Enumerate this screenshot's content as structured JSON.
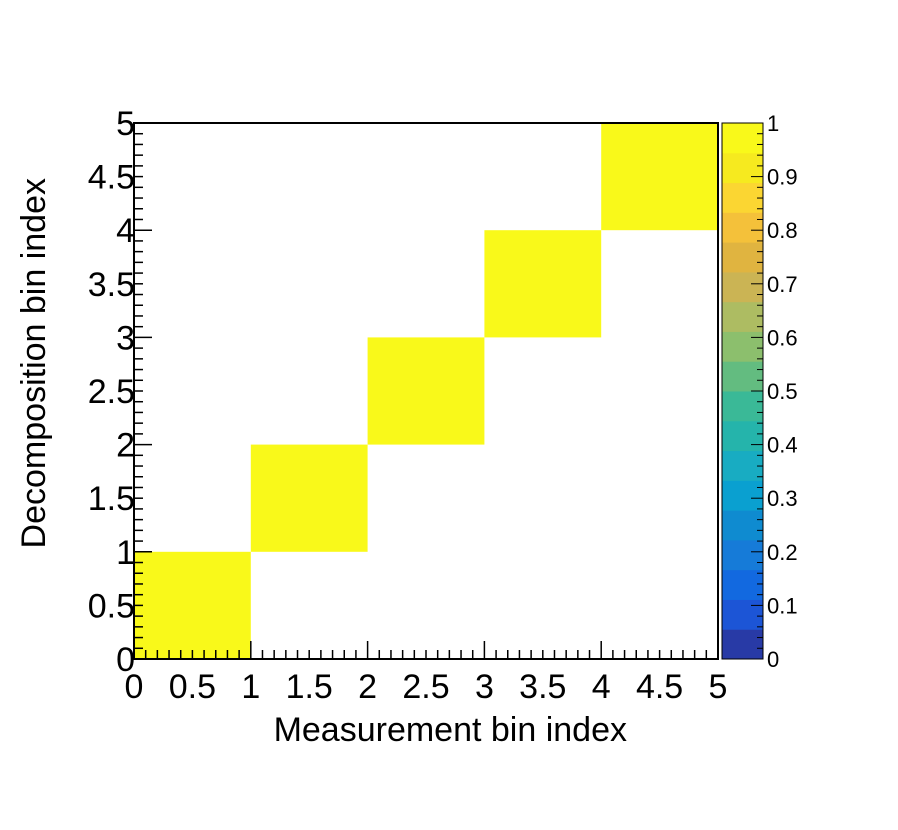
{
  "chart_data": {
    "type": "heatmap",
    "title": "",
    "xlabel": "Measurement bin index",
    "ylabel": "Decomposition bin index",
    "xlim": [
      0,
      5
    ],
    "ylim": [
      0,
      5
    ],
    "x_tick_labels": [
      "0",
      "0.5",
      "1",
      "1.5",
      "2",
      "2.5",
      "3",
      "3.5",
      "4",
      "4.5",
      "5"
    ],
    "y_tick_labels": [
      "0",
      "0.5",
      "1",
      "1.5",
      "2",
      "2.5",
      "3",
      "3.5",
      "4",
      "4.5",
      "5"
    ],
    "x_bin_edges": [
      0,
      1,
      2,
      3,
      4,
      5
    ],
    "y_bin_edges": [
      0,
      1,
      2,
      3,
      4,
      5
    ],
    "cells": [
      {
        "x": [
          0,
          1
        ],
        "y": [
          0,
          1
        ],
        "value": 1
      },
      {
        "x": [
          1,
          2
        ],
        "y": [
          1,
          2
        ],
        "value": 1
      },
      {
        "x": [
          2,
          3
        ],
        "y": [
          2,
          3
        ],
        "value": 1
      },
      {
        "x": [
          3,
          4
        ],
        "y": [
          3,
          4
        ],
        "value": 1
      },
      {
        "x": [
          4,
          5
        ],
        "y": [
          4,
          5
        ],
        "value": 1
      }
    ],
    "empty_cell_color": "#ffffff",
    "colorscale": {
      "range": [
        0,
        1
      ],
      "tick_labels": [
        "0",
        "0.1",
        "0.2",
        "0.3",
        "0.4",
        "0.5",
        "0.6",
        "0.7",
        "0.8",
        "0.9",
        "1"
      ],
      "colors": [
        "#283aa6",
        "#1c55d6",
        "#1269e0",
        "#167bd8",
        "#0f8bd0",
        "#0aa0d0",
        "#18acc2",
        "#25b4ab",
        "#3ab997",
        "#63bc80",
        "#8cbf6d",
        "#adbc62",
        "#cbb454",
        "#e0b440",
        "#f4c13a",
        "#fbd632",
        "#f6ea1f",
        "#f9f91a"
      ]
    },
    "grid": false,
    "legend": "none"
  }
}
